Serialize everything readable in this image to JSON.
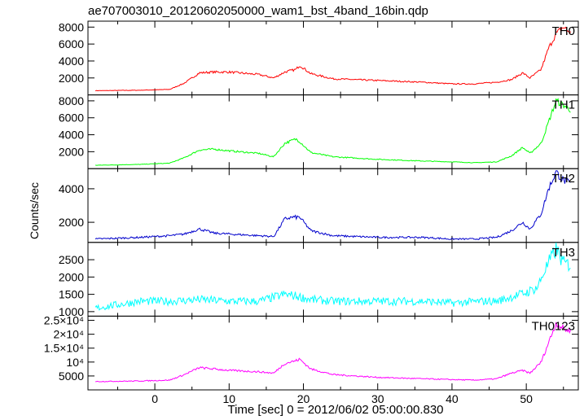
{
  "title": "ae707003010_20120602050000_wam1_bst_4band_16bin.qdp",
  "chart_data": {
    "type": "line",
    "title": "ae707003010_20120602050000_wam1_bst_4band_16bin.qdp",
    "xlabel": "Time [sec] 0 = 2012/06/02 05:00:00.830",
    "ylabel": "Counts/sec",
    "xlim": [
      -9,
      57
    ],
    "x_ticks": [
      "0",
      "10",
      "20",
      "30",
      "40",
      "50"
    ],
    "panels": [
      {
        "name": "TH0",
        "color": "#ff0000",
        "ylim": [
          0,
          8700
        ],
        "noise": 0.05,
        "y_ticks": [
          "2000",
          "4000",
          "6000",
          "8000"
        ],
        "y_tick_values": [
          2000,
          4000,
          6000,
          8000
        ],
        "x": [
          -8,
          -2,
          2,
          4,
          6,
          8,
          10,
          14,
          16,
          17.5,
          19,
          19.5,
          21,
          24,
          30,
          36,
          40,
          43,
          46,
          48,
          49.5,
          50.5,
          52,
          53,
          54,
          55,
          56
        ],
        "y": [
          500,
          550,
          650,
          1400,
          2600,
          2700,
          2700,
          2400,
          2000,
          2700,
          3000,
          3500,
          2500,
          1900,
          1700,
          1500,
          1300,
          1300,
          1500,
          1800,
          2600,
          2000,
          3000,
          5500,
          7200,
          8000,
          7300
        ]
      },
      {
        "name": "TH1",
        "color": "#00ff00",
        "ylim": [
          0,
          8700
        ],
        "noise": 0.05,
        "y_ticks": [
          "2000",
          "4000",
          "6000",
          "8000"
        ],
        "y_tick_values": [
          2000,
          4000,
          6000,
          8000
        ],
        "x": [
          -8,
          -2,
          2,
          4,
          6,
          8,
          10,
          14,
          16,
          17.5,
          19,
          19.5,
          21,
          24,
          30,
          36,
          40,
          43,
          46,
          48,
          49.5,
          50.5,
          52,
          53,
          54,
          55,
          56
        ],
        "y": [
          400,
          500,
          650,
          1300,
          2200,
          2300,
          2100,
          1800,
          1400,
          3000,
          3500,
          3200,
          1900,
          1400,
          1100,
          900,
          800,
          700,
          800,
          1500,
          2500,
          1800,
          3000,
          5500,
          8000,
          7500,
          6900
        ]
      },
      {
        "name": "TH2",
        "color": "#0000cc",
        "ylim": [
          800,
          5200
        ],
        "noise": 0.05,
        "y_ticks": [
          "2000",
          "4000"
        ],
        "y_tick_values": [
          2000,
          4000
        ],
        "x": [
          -8,
          -2,
          2,
          4,
          6,
          8,
          10,
          14,
          16,
          17.5,
          18.5,
          19.5,
          21,
          24,
          30,
          36,
          40,
          43,
          46,
          48,
          49.5,
          50.5,
          52,
          53,
          54,
          55,
          56
        ],
        "y": [
          1000,
          1100,
          1200,
          1300,
          1600,
          1350,
          1300,
          1200,
          1150,
          2200,
          2300,
          2300,
          1500,
          1200,
          1100,
          1100,
          1000,
          1000,
          1100,
          1500,
          2000,
          1600,
          2500,
          4000,
          5000,
          4500,
          4300
        ]
      },
      {
        "name": "TH3",
        "color": "#00ffff",
        "ylim": [
          870,
          3000
        ],
        "noise": 0.09,
        "y_ticks": [
          "1000",
          "1500",
          "2000",
          "2500"
        ],
        "y_tick_values": [
          1000,
          1500,
          2000,
          2500
        ],
        "x": [
          -8,
          -2,
          2,
          6,
          10,
          14,
          17.5,
          19,
          21,
          24,
          30,
          36,
          40,
          44,
          46,
          50,
          51.5,
          52.5,
          54,
          55,
          56
        ],
        "y": [
          1100,
          1300,
          1300,
          1350,
          1300,
          1300,
          1500,
          1450,
          1350,
          1300,
          1300,
          1300,
          1250,
          1300,
          1300,
          1550,
          1700,
          2200,
          2800,
          2400,
          2350
        ]
      },
      {
        "name": "TH0123",
        "color": "#ff00ff",
        "ylim": [
          0,
          26500
        ],
        "noise": 0.05,
        "y_ticks": [
          "5000",
          "10⁴",
          "1.5×10⁴",
          "2×10⁴",
          "2.5×10⁴"
        ],
        "y_tick_values": [
          5000,
          10000,
          15000,
          20000,
          25000
        ],
        "x": [
          -8,
          -2,
          2,
          4,
          6,
          8,
          10,
          14,
          16,
          17.5,
          19,
          19.5,
          21,
          24,
          30,
          36,
          40,
          43,
          46,
          48,
          49.5,
          50.5,
          52,
          53,
          54,
          55,
          56
        ],
        "y": [
          3000,
          3200,
          3500,
          5500,
          8000,
          7500,
          7000,
          6500,
          6000,
          9500,
          10500,
          11000,
          7500,
          5500,
          4500,
          4000,
          3700,
          3500,
          4000,
          6000,
          7000,
          6000,
          10000,
          17000,
          24000,
          22000,
          21000
        ]
      }
    ]
  }
}
